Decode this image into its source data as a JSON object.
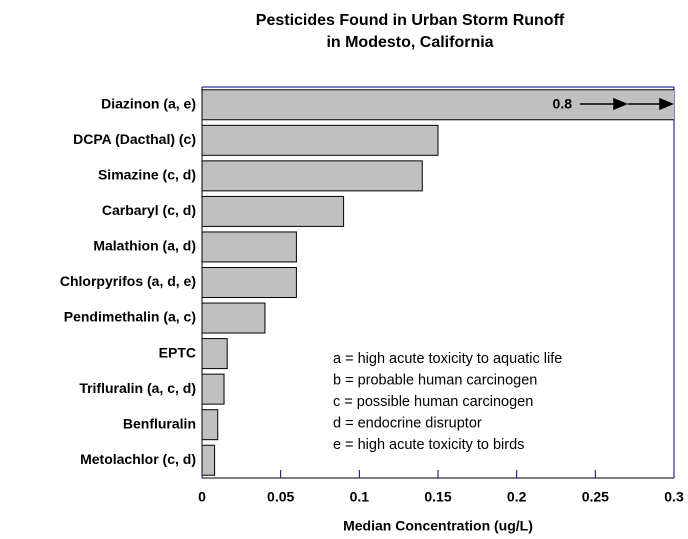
{
  "chart_data": {
    "type": "barh",
    "title": [
      "Pesticides Found in Urban Storm Runoff",
      "in Modesto, California"
    ],
    "xlabel": "Median Concentration (ug/L)",
    "categories": [
      "Diazinon (a, e)",
      "DCPA (Dacthal) (c)",
      "Simazine (c, d)",
      "Carbaryl (c, d)",
      "Malathion (a, d)",
      "Chlorpyrifos (a, d, e)",
      "Pendimethalin (a, c)",
      "EPTC",
      "Trifluralin (a, c, d)",
      "Benfluralin",
      "Metolachlor (c, d)"
    ],
    "values": [
      0.8,
      0.15,
      0.14,
      0.09,
      0.06,
      0.06,
      0.04,
      0.016,
      0.014,
      0.01,
      0.008
    ],
    "value_labels": [
      "0.8",
      null,
      null,
      null,
      null,
      null,
      null,
      null,
      null,
      null,
      null
    ],
    "color": "#c0c0c0",
    "xlim": [
      0,
      0.3
    ],
    "xticks": [
      0,
      0.05,
      0.1,
      0.15,
      0.2,
      0.25,
      0.3
    ],
    "notes": [
      "a = high acute toxicity to aquatic life",
      "b = probable human carcinogen",
      "c = possible human carcinogen",
      "d = endocrine disruptor",
      "e = high acute toxicity to birds"
    ]
  }
}
